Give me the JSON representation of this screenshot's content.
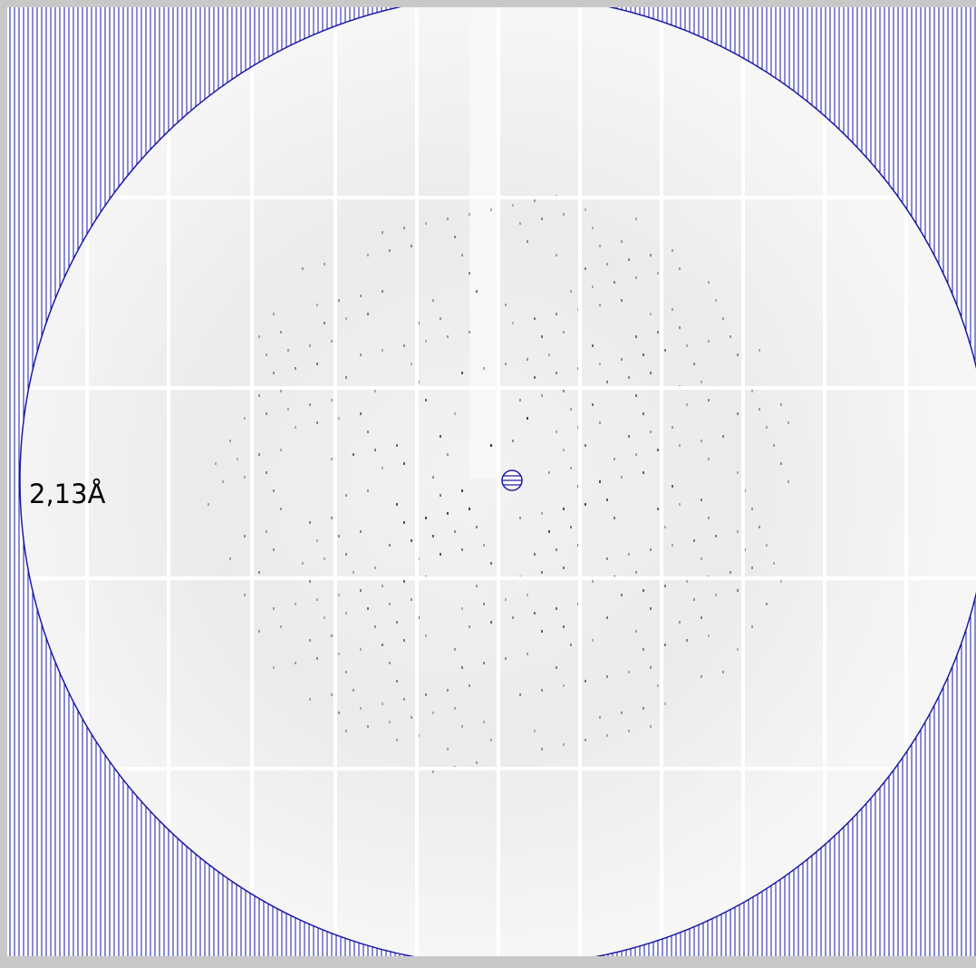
{
  "resolution_label": "2,13Å"
}
